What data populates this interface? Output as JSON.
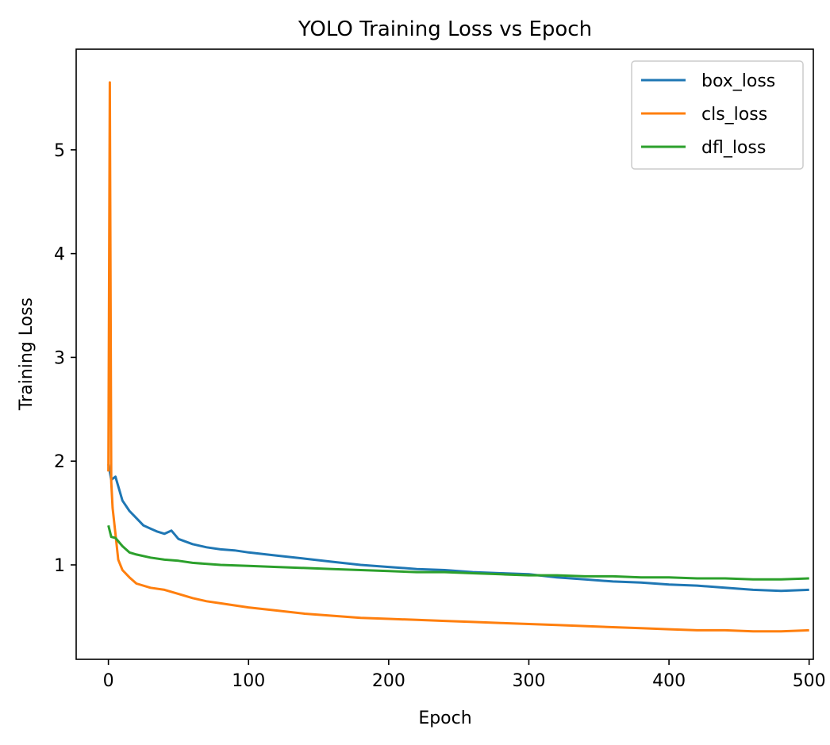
{
  "chart_data": {
    "type": "line",
    "title": "YOLO Training Loss vs Epoch",
    "xlabel": "Epoch",
    "ylabel": "Training Loss",
    "xlim": [
      -23,
      503
    ],
    "ylim": [
      0.09,
      5.97
    ],
    "xticks": [
      0,
      100,
      200,
      300,
      400,
      500
    ],
    "yticks": [
      1,
      2,
      3,
      4,
      5
    ],
    "grid": false,
    "legend_position": "top-right",
    "series": [
      {
        "name": "box_loss",
        "color": "#1f77b4",
        "x": [
          0,
          2,
          5,
          10,
          15,
          20,
          25,
          30,
          35,
          40,
          45,
          50,
          60,
          70,
          80,
          90,
          100,
          120,
          140,
          160,
          180,
          200,
          220,
          240,
          260,
          280,
          300,
          320,
          340,
          360,
          380,
          400,
          420,
          440,
          460,
          480,
          500
        ],
        "y": [
          1.97,
          1.82,
          1.85,
          1.62,
          1.52,
          1.45,
          1.38,
          1.35,
          1.32,
          1.3,
          1.33,
          1.25,
          1.2,
          1.17,
          1.15,
          1.14,
          1.12,
          1.09,
          1.06,
          1.03,
          1.0,
          0.98,
          0.96,
          0.95,
          0.93,
          0.92,
          0.91,
          0.88,
          0.86,
          0.84,
          0.83,
          0.81,
          0.8,
          0.78,
          0.76,
          0.75,
          0.76
        ]
      },
      {
        "name": "cls_loss",
        "color": "#ff7f0e",
        "x": [
          0,
          1,
          2,
          3,
          5,
          7,
          10,
          15,
          20,
          30,
          40,
          50,
          60,
          70,
          80,
          100,
          120,
          140,
          160,
          180,
          200,
          220,
          240,
          260,
          280,
          300,
          320,
          340,
          360,
          380,
          400,
          420,
          440,
          460,
          480,
          500
        ],
        "y": [
          1.9,
          5.65,
          1.8,
          1.55,
          1.3,
          1.05,
          0.95,
          0.88,
          0.82,
          0.78,
          0.76,
          0.72,
          0.68,
          0.65,
          0.63,
          0.59,
          0.56,
          0.53,
          0.51,
          0.49,
          0.48,
          0.47,
          0.46,
          0.45,
          0.44,
          0.43,
          0.42,
          0.41,
          0.4,
          0.39,
          0.38,
          0.37,
          0.37,
          0.36,
          0.36,
          0.37
        ]
      },
      {
        "name": "dfl_loss",
        "color": "#2ca02c",
        "x": [
          0,
          2,
          5,
          10,
          15,
          20,
          30,
          40,
          50,
          60,
          80,
          100,
          120,
          140,
          160,
          180,
          200,
          220,
          240,
          260,
          280,
          300,
          320,
          340,
          360,
          380,
          400,
          420,
          440,
          460,
          480,
          500
        ],
        "y": [
          1.38,
          1.27,
          1.26,
          1.18,
          1.12,
          1.1,
          1.07,
          1.05,
          1.04,
          1.02,
          1.0,
          0.99,
          0.98,
          0.97,
          0.96,
          0.95,
          0.94,
          0.93,
          0.93,
          0.92,
          0.91,
          0.9,
          0.9,
          0.89,
          0.89,
          0.88,
          0.88,
          0.87,
          0.87,
          0.86,
          0.86,
          0.87
        ]
      }
    ]
  }
}
